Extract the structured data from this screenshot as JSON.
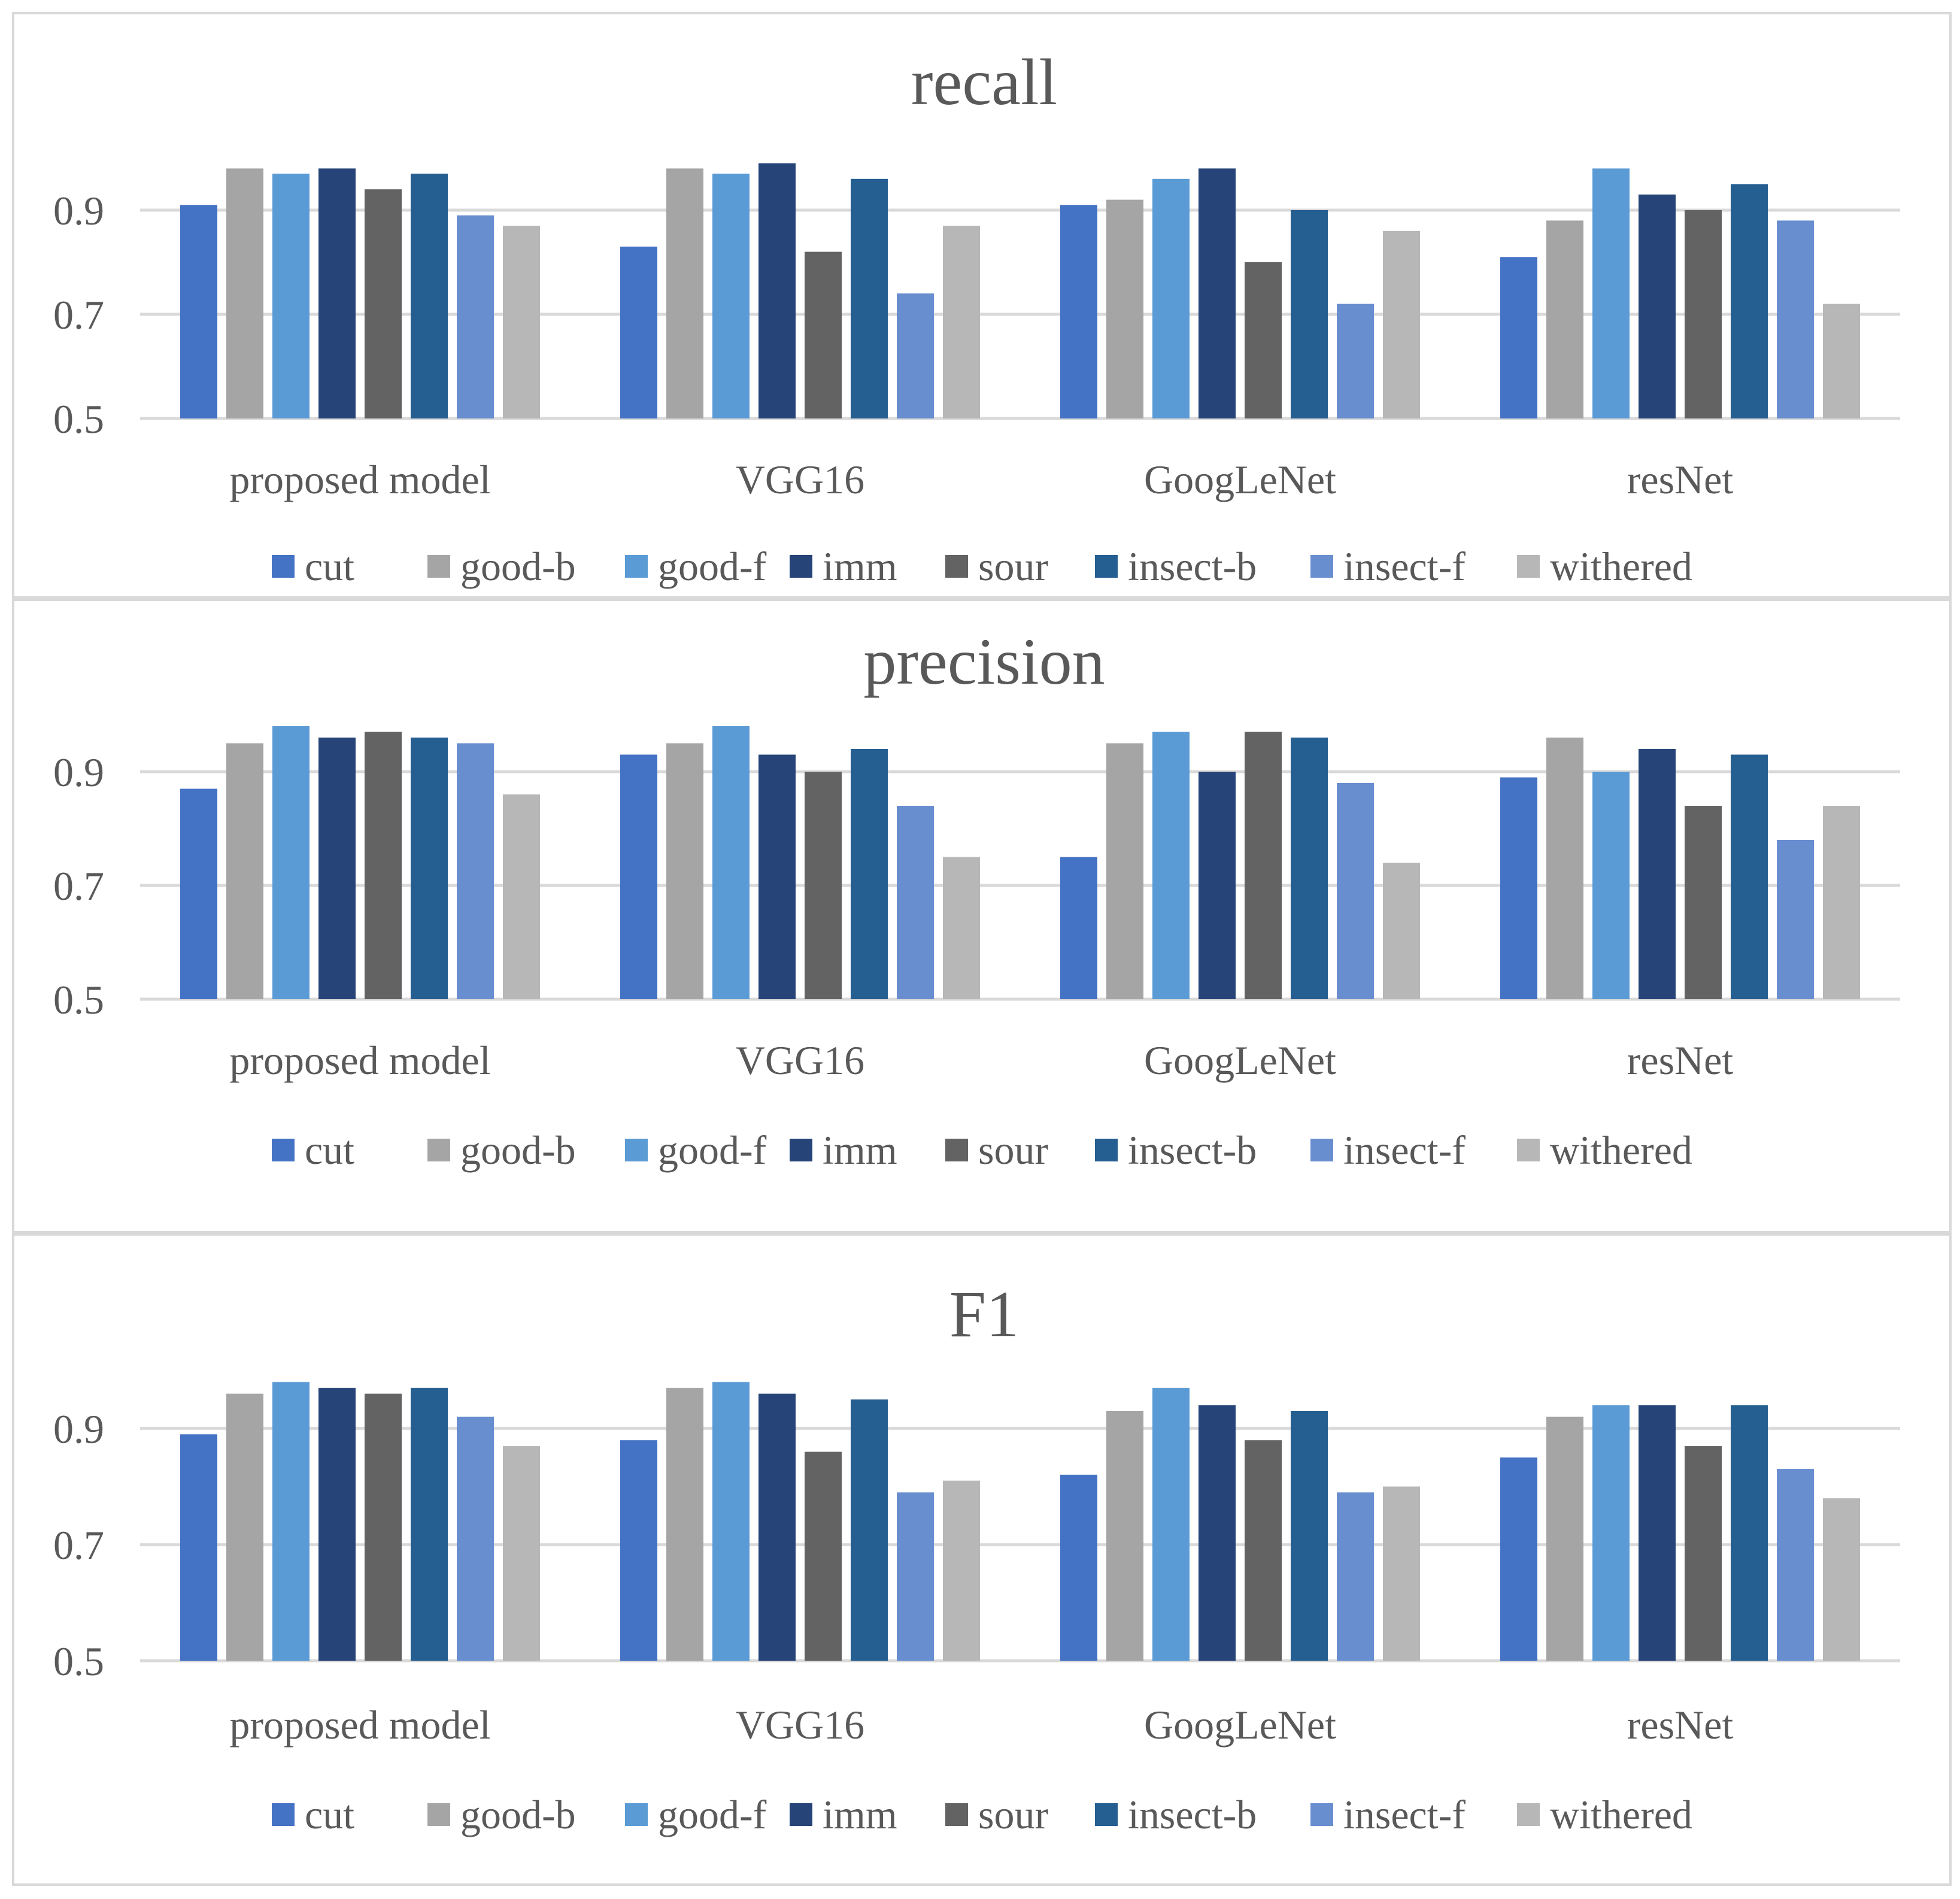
{
  "chart_data": [
    {
      "type": "bar",
      "title": "recall",
      "categories": [
        "proposed model",
        "VGG16",
        "GoogLeNet",
        "resNet"
      ],
      "ylim": [
        0.5,
        1.0
      ],
      "yticks": [
        "0.5",
        "0.7",
        "0.9"
      ],
      "legend_position": "bottom",
      "series": [
        {
          "name": "cut",
          "color": "#4472c4",
          "values": [
            0.91,
            0.83,
            0.91,
            0.81
          ]
        },
        {
          "name": "good-b",
          "color": "#a5a5a5",
          "values": [
            0.98,
            0.98,
            0.92,
            0.88
          ]
        },
        {
          "name": "good-f",
          "color": "#5b9bd5",
          "values": [
            0.97,
            0.97,
            0.96,
            0.98
          ]
        },
        {
          "name": "imm",
          "color": "#264478",
          "values": [
            0.98,
            0.99,
            0.98,
            0.93
          ]
        },
        {
          "name": "sour",
          "color": "#636363",
          "values": [
            0.94,
            0.82,
            0.8,
            0.9
          ]
        },
        {
          "name": "insect-b",
          "color": "#255e91",
          "values": [
            0.97,
            0.96,
            0.9,
            0.95
          ]
        },
        {
          "name": "insect-f",
          "color": "#698ed0",
          "values": [
            0.89,
            0.74,
            0.72,
            0.88
          ]
        },
        {
          "name": "withered",
          "color": "#b7b7b7",
          "values": [
            0.87,
            0.87,
            0.86,
            0.72
          ]
        }
      ]
    },
    {
      "type": "bar",
      "title": "precision",
      "categories": [
        "proposed model",
        "VGG16",
        "GoogLeNet",
        "resNet"
      ],
      "ylim": [
        0.5,
        1.0
      ],
      "yticks": [
        "0.5",
        "0.7",
        "0.9"
      ],
      "legend_position": "bottom",
      "series": [
        {
          "name": "cut",
          "color": "#4472c4",
          "values": [
            0.87,
            0.93,
            0.75,
            0.89
          ]
        },
        {
          "name": "good-b",
          "color": "#a5a5a5",
          "values": [
            0.95,
            0.95,
            0.95,
            0.96
          ]
        },
        {
          "name": "good-f",
          "color": "#5b9bd5",
          "values": [
            0.98,
            0.98,
            0.97,
            0.9
          ]
        },
        {
          "name": "imm",
          "color": "#264478",
          "values": [
            0.96,
            0.93,
            0.9,
            0.94
          ]
        },
        {
          "name": "sour",
          "color": "#636363",
          "values": [
            0.97,
            0.9,
            0.97,
            0.84
          ]
        },
        {
          "name": "insect-b",
          "color": "#255e91",
          "values": [
            0.96,
            0.94,
            0.96,
            0.93
          ]
        },
        {
          "name": "insect-f",
          "color": "#698ed0",
          "values": [
            0.95,
            0.84,
            0.88,
            0.78
          ]
        },
        {
          "name": "withered",
          "color": "#b7b7b7",
          "values": [
            0.86,
            0.75,
            0.74,
            0.84
          ]
        }
      ]
    },
    {
      "type": "bar",
      "title": "F1",
      "categories": [
        "proposed model",
        "VGG16",
        "GoogLeNet",
        "resNet"
      ],
      "ylim": [
        0.5,
        1.0
      ],
      "yticks": [
        "0.5",
        "0.7",
        "0.9"
      ],
      "legend_position": "bottom",
      "series": [
        {
          "name": "cut",
          "color": "#4472c4",
          "values": [
            0.89,
            0.88,
            0.82,
            0.85
          ]
        },
        {
          "name": "good-b",
          "color": "#a5a5a5",
          "values": [
            0.96,
            0.97,
            0.93,
            0.92
          ]
        },
        {
          "name": "good-f",
          "color": "#5b9bd5",
          "values": [
            0.98,
            0.98,
            0.97,
            0.94
          ]
        },
        {
          "name": "imm",
          "color": "#264478",
          "values": [
            0.97,
            0.96,
            0.94,
            0.94
          ]
        },
        {
          "name": "sour",
          "color": "#636363",
          "values": [
            0.96,
            0.86,
            0.88,
            0.87
          ]
        },
        {
          "name": "insect-b",
          "color": "#255e91",
          "values": [
            0.97,
            0.95,
            0.93,
            0.94
          ]
        },
        {
          "name": "insect-f",
          "color": "#698ed0",
          "values": [
            0.92,
            0.79,
            0.79,
            0.83
          ]
        },
        {
          "name": "withered",
          "color": "#b7b7b7",
          "values": [
            0.87,
            0.81,
            0.8,
            0.78
          ]
        }
      ]
    }
  ]
}
